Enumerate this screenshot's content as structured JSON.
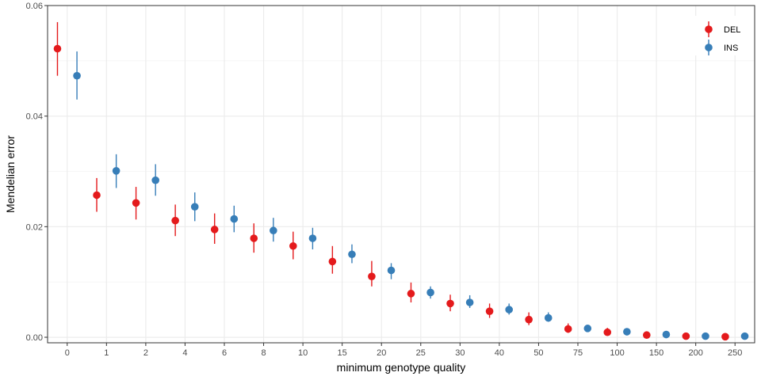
{
  "chart_data": {
    "type": "scatter",
    "title": "",
    "xlabel": "minimum genotype quality",
    "ylabel": "Mendelian error",
    "categories": [
      "0",
      "1",
      "2",
      "4",
      "6",
      "8",
      "10",
      "15",
      "20",
      "25",
      "30",
      "40",
      "50",
      "75",
      "100",
      "150",
      "200",
      "250"
    ],
    "yticks": [
      "0.00",
      "0.02",
      "0.04",
      "0.06"
    ],
    "ytick_values": [
      0.0,
      0.02,
      0.04,
      0.06
    ],
    "ylim": [
      -0.001,
      0.06
    ],
    "grid": true,
    "legend_position": "top-right",
    "series": [
      {
        "name": "DEL",
        "color": "#E41A1C",
        "dodge": "left",
        "values": [
          0.0522,
          0.0257,
          0.0243,
          0.0211,
          0.0195,
          0.0179,
          0.0165,
          0.0137,
          0.011,
          0.0079,
          0.0061,
          0.0047,
          0.0032,
          0.0015,
          0.0009,
          0.0004,
          0.0002,
          0.0001
        ],
        "lower": [
          0.0473,
          0.0227,
          0.0213,
          0.0183,
          0.0169,
          0.0153,
          0.0141,
          0.0115,
          0.0092,
          0.0063,
          0.0047,
          0.0035,
          0.0022,
          0.0008,
          0.0004,
          0.0001,
          0.0,
          0.0
        ],
        "upper": [
          0.057,
          0.0288,
          0.0272,
          0.024,
          0.0224,
          0.0206,
          0.0191,
          0.0165,
          0.0138,
          0.0099,
          0.0077,
          0.0061,
          0.0045,
          0.0025,
          0.0017,
          0.0009,
          0.0006,
          0.0004
        ]
      },
      {
        "name": "INS",
        "color": "#377EB8",
        "dodge": "right",
        "values": [
          0.0473,
          0.0301,
          0.0284,
          0.0236,
          0.0214,
          0.0193,
          0.0179,
          0.015,
          0.0121,
          0.0081,
          0.0063,
          0.005,
          0.0035,
          0.0016,
          0.001,
          0.0005,
          0.0002,
          0.0002
        ],
        "lower": [
          0.043,
          0.027,
          0.0256,
          0.021,
          0.019,
          0.0173,
          0.0159,
          0.0134,
          0.0105,
          0.007,
          0.0053,
          0.0041,
          0.0028,
          0.0011,
          0.0006,
          0.0002,
          0.0,
          0.0
        ],
        "upper": [
          0.0517,
          0.0331,
          0.0313,
          0.0262,
          0.0238,
          0.0216,
          0.0198,
          0.0168,
          0.0134,
          0.0092,
          0.0076,
          0.0061,
          0.0045,
          0.0022,
          0.0015,
          0.0009,
          0.0005,
          0.0004
        ]
      }
    ]
  }
}
